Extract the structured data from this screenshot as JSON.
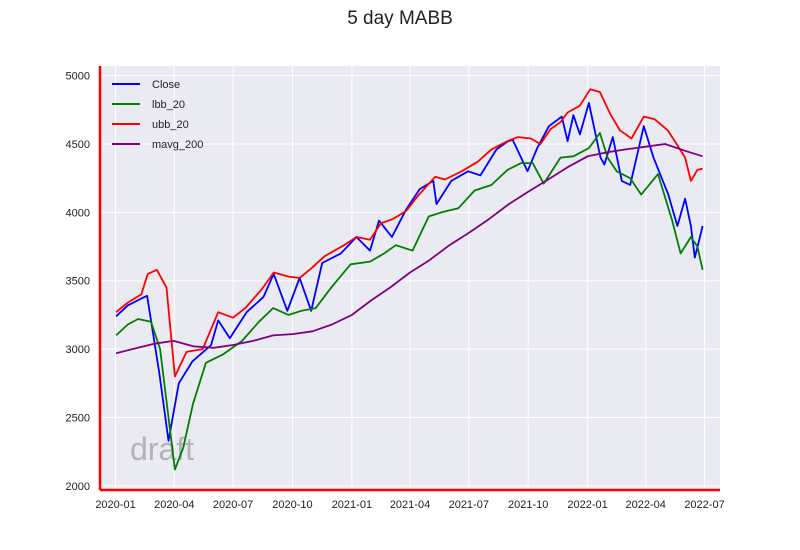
{
  "chart_data": {
    "type": "line",
    "title": "5 day MABB",
    "xlabel": "",
    "ylabel": "",
    "xlim": [
      "2019-12-08",
      "2022-07-25"
    ],
    "ylim": [
      1970,
      5070
    ],
    "x_ticks": [
      "2020-01",
      "2020-04",
      "2020-07",
      "2020-10",
      "2021-01",
      "2021-04",
      "2021-07",
      "2021-10",
      "2022-01",
      "2022-04",
      "2022-07"
    ],
    "y_ticks": [
      2000,
      2500,
      3000,
      3500,
      4000,
      4500,
      5000
    ],
    "grid": true,
    "legend": "top-left",
    "watermark": "draft",
    "series": [
      {
        "name": "Close",
        "color": "#0000ff",
        "x": [
          "2020-01-02",
          "2020-01-20",
          "2020-02-10",
          "2020-02-19",
          "2020-03-09",
          "2020-03-23",
          "2020-04-08",
          "2020-04-29",
          "2020-05-28",
          "2020-06-08",
          "2020-06-26",
          "2020-07-22",
          "2020-08-17",
          "2020-09-02",
          "2020-09-23",
          "2020-10-12",
          "2020-10-30",
          "2020-11-16",
          "2020-12-15",
          "2021-01-08",
          "2021-01-29",
          "2021-02-12",
          "2021-03-04",
          "2021-03-26",
          "2021-04-16",
          "2021-05-07",
          "2021-05-12",
          "2021-06-04",
          "2021-06-30",
          "2021-07-19",
          "2021-08-13",
          "2021-08-31",
          "2021-09-07",
          "2021-09-30",
          "2021-10-15",
          "2021-11-02",
          "2021-11-22",
          "2021-12-01",
          "2021-12-10",
          "2021-12-20",
          "2022-01-03",
          "2022-01-21",
          "2022-01-27",
          "2022-02-09",
          "2022-02-23",
          "2022-03-08",
          "2022-03-29",
          "2022-04-13",
          "2022-05-06",
          "2022-05-20",
          "2022-06-01",
          "2022-06-10",
          "2022-06-16",
          "2022-06-23",
          "2022-06-28"
        ],
        "y": [
          3240,
          3320,
          3370,
          3390,
          2820,
          2330,
          2750,
          2910,
          3030,
          3210,
          3080,
          3270,
          3380,
          3550,
          3280,
          3520,
          3280,
          3630,
          3700,
          3820,
          3720,
          3940,
          3820,
          4020,
          4170,
          4230,
          4060,
          4230,
          4300,
          4270,
          4460,
          4520,
          4530,
          4300,
          4470,
          4630,
          4700,
          4520,
          4710,
          4570,
          4800,
          4400,
          4350,
          4550,
          4230,
          4200,
          4630,
          4400,
          4130,
          3900,
          4100,
          3900,
          3670,
          3800,
          3900
        ]
      },
      {
        "name": "lbb_20",
        "color": "#008000",
        "x": [
          "2020-01-02",
          "2020-01-20",
          "2020-02-05",
          "2020-02-25",
          "2020-03-10",
          "2020-03-23",
          "2020-04-02",
          "2020-04-15",
          "2020-04-30",
          "2020-05-20",
          "2020-06-15",
          "2020-07-15",
          "2020-08-10",
          "2020-09-01",
          "2020-09-25",
          "2020-10-15",
          "2020-11-06",
          "2020-11-30",
          "2020-12-30",
          "2021-01-29",
          "2021-02-20",
          "2021-03-10",
          "2021-04-05",
          "2021-04-30",
          "2021-05-20",
          "2021-06-15",
          "2021-07-10",
          "2021-08-05",
          "2021-08-30",
          "2021-09-20",
          "2021-10-08",
          "2021-10-25",
          "2021-11-20",
          "2021-12-10",
          "2022-01-03",
          "2022-01-20",
          "2022-02-01",
          "2022-02-15",
          "2022-03-08",
          "2022-03-25",
          "2022-04-20",
          "2022-05-12",
          "2022-05-25",
          "2022-06-10",
          "2022-06-20",
          "2022-06-28"
        ],
        "y": [
          3100,
          3180,
          3220,
          3200,
          3000,
          2500,
          2120,
          2280,
          2600,
          2900,
          2960,
          3060,
          3200,
          3300,
          3250,
          3280,
          3300,
          3450,
          3620,
          3640,
          3700,
          3760,
          3720,
          3970,
          4000,
          4030,
          4160,
          4200,
          4310,
          4360,
          4360,
          4210,
          4400,
          4410,
          4470,
          4580,
          4400,
          4300,
          4250,
          4130,
          4280,
          3940,
          3700,
          3820,
          3750,
          3580
        ]
      },
      {
        "name": "ubb_20",
        "color": "#ff0000",
        "x": [
          "2020-01-02",
          "2020-01-20",
          "2020-02-10",
          "2020-02-20",
          "2020-03-05",
          "2020-03-20",
          "2020-04-02",
          "2020-04-20",
          "2020-05-15",
          "2020-06-08",
          "2020-07-01",
          "2020-07-20",
          "2020-08-15",
          "2020-09-02",
          "2020-09-25",
          "2020-10-12",
          "2020-10-30",
          "2020-11-20",
          "2020-12-20",
          "2021-01-08",
          "2021-01-29",
          "2021-02-15",
          "2021-03-05",
          "2021-03-26",
          "2021-04-15",
          "2021-05-10",
          "2021-05-25",
          "2021-06-20",
          "2021-07-15",
          "2021-08-05",
          "2021-08-30",
          "2021-09-15",
          "2021-10-05",
          "2021-10-20",
          "2021-11-05",
          "2021-11-20",
          "2021-12-01",
          "2021-12-20",
          "2022-01-05",
          "2022-01-20",
          "2022-02-05",
          "2022-02-20",
          "2022-03-10",
          "2022-03-29",
          "2022-04-15",
          "2022-05-05",
          "2022-05-20",
          "2022-06-01",
          "2022-06-10",
          "2022-06-20",
          "2022-06-28"
        ],
        "y": [
          3270,
          3340,
          3400,
          3550,
          3580,
          3450,
          2800,
          2980,
          3000,
          3270,
          3230,
          3300,
          3440,
          3560,
          3530,
          3520,
          3590,
          3680,
          3760,
          3820,
          3800,
          3920,
          3950,
          4010,
          4130,
          4260,
          4240,
          4300,
          4370,
          4460,
          4520,
          4550,
          4540,
          4500,
          4610,
          4660,
          4730,
          4780,
          4900,
          4880,
          4720,
          4600,
          4540,
          4700,
          4680,
          4600,
          4490,
          4400,
          4230,
          4310,
          4320
        ]
      },
      {
        "name": "mavg_200",
        "color": "#800080",
        "x": [
          "2020-01-02",
          "2020-03-01",
          "2020-03-31",
          "2020-05-01",
          "2020-06-01",
          "2020-07-01",
          "2020-08-01",
          "2020-09-01",
          "2020-10-01",
          "2020-11-01",
          "2020-12-01",
          "2021-01-01",
          "2021-02-01",
          "2021-03-01",
          "2021-04-01",
          "2021-05-01",
          "2021-06-01",
          "2021-07-01",
          "2021-08-01",
          "2021-09-01",
          "2021-10-01",
          "2021-11-01",
          "2021-12-01",
          "2022-01-01",
          "2022-02-01",
          "2022-03-01",
          "2022-04-01",
          "2022-05-01",
          "2022-06-01",
          "2022-06-28"
        ],
        "y": [
          2970,
          3040,
          3060,
          3020,
          3010,
          3030,
          3060,
          3100,
          3110,
          3130,
          3180,
          3250,
          3360,
          3450,
          3560,
          3650,
          3760,
          3850,
          3950,
          4060,
          4150,
          4240,
          4330,
          4410,
          4440,
          4460,
          4480,
          4500,
          4450,
          4410
        ]
      }
    ]
  }
}
